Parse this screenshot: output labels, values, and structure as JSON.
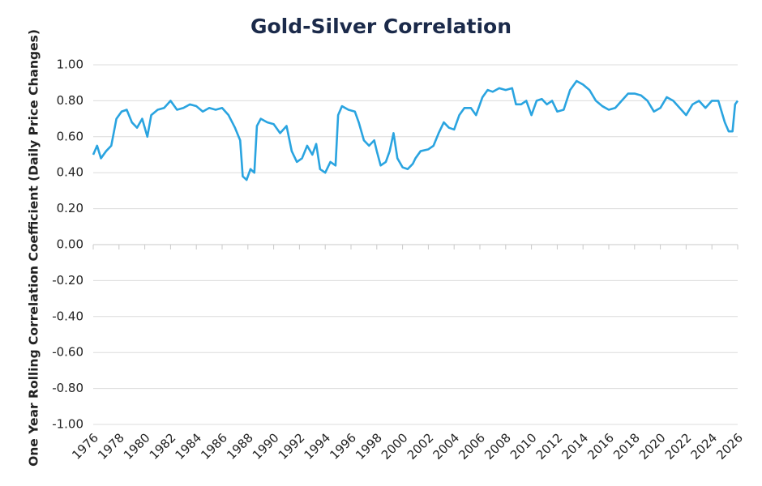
{
  "chart_data": {
    "type": "line",
    "title": "Gold-Silver Correlation",
    "y_label": "One Year Rolling Correlation Coefficient (Daily Price Changes)",
    "xlim": [
      1976,
      2026
    ],
    "xticks": [
      1976,
      1978,
      1980,
      1982,
      1984,
      1986,
      1988,
      1990,
      1992,
      1994,
      1996,
      1998,
      2000,
      2002,
      2004,
      2006,
      2008,
      2010,
      2012,
      2014,
      2016,
      2018,
      2020,
      2022,
      2024,
      2026
    ],
    "ylim": [
      -1,
      1
    ],
    "yticks": [
      {
        "value": -1,
        "label": "-1.00"
      },
      {
        "value": -0.8,
        "label": "-0.80"
      },
      {
        "value": -0.6,
        "label": "-0.60"
      },
      {
        "value": -0.4,
        "label": "-0.40"
      },
      {
        "value": -0.2,
        "label": "-0.20"
      },
      {
        "value": 0,
        "label": "0.00"
      },
      {
        "value": 0.2,
        "label": "0.20"
      },
      {
        "value": 0.4,
        "label": "0.40"
      },
      {
        "value": 0.6,
        "label": "0.60"
      },
      {
        "value": 0.8,
        "label": "0.80"
      },
      {
        "value": 1,
        "label": "1.00"
      }
    ],
    "grid": true,
    "x": [
      1976.0,
      1976.3,
      1976.6,
      1977.0,
      1977.4,
      1977.8,
      1978.2,
      1978.6,
      1979.0,
      1979.4,
      1979.8,
      1980.2,
      1980.5,
      1981.0,
      1981.5,
      1982.0,
      1982.5,
      1983.0,
      1983.5,
      1984.0,
      1984.5,
      1985.0,
      1985.5,
      1986.0,
      1986.5,
      1987.0,
      1987.4,
      1987.6,
      1987.9,
      1988.2,
      1988.5,
      1988.7,
      1989.0,
      1989.5,
      1990.0,
      1990.5,
      1991.0,
      1991.4,
      1991.8,
      1992.2,
      1992.6,
      1993.0,
      1993.3,
      1993.6,
      1994.0,
      1994.4,
      1994.8,
      1995.0,
      1995.3,
      1995.8,
      1996.3,
      1996.6,
      1997.0,
      1997.4,
      1997.8,
      1998.0,
      1998.3,
      1998.7,
      1999.0,
      1999.3,
      1999.6,
      2000.0,
      2000.4,
      2000.8,
      2001.0,
      2001.4,
      2002.0,
      2002.4,
      2002.8,
      2003.2,
      2003.6,
      2004.0,
      2004.4,
      2004.8,
      2005.3,
      2005.7,
      2006.2,
      2006.6,
      2007.0,
      2007.5,
      2008.0,
      2008.5,
      2008.8,
      2009.2,
      2009.6,
      2010.0,
      2010.4,
      2010.8,
      2011.2,
      2011.6,
      2012.0,
      2012.5,
      2013.0,
      2013.5,
      2014.0,
      2014.5,
      2015.0,
      2015.5,
      2016.0,
      2016.5,
      2017.0,
      2017.5,
      2018.0,
      2018.5,
      2019.0,
      2019.5,
      2020.0,
      2020.5,
      2021.0,
      2021.5,
      2022.0,
      2022.5,
      2023.0,
      2023.5,
      2024.0,
      2024.5,
      2025.0,
      2025.3,
      2025.6,
      2025.8,
      2026.0
    ],
    "series": [
      {
        "name": "Gold-Silver Correlation",
        "color": "#2aa4e0",
        "values": [
          0.5,
          0.55,
          0.48,
          0.52,
          0.55,
          0.7,
          0.74,
          0.75,
          0.68,
          0.65,
          0.7,
          0.6,
          0.72,
          0.75,
          0.76,
          0.8,
          0.75,
          0.76,
          0.78,
          0.77,
          0.74,
          0.76,
          0.75,
          0.76,
          0.72,
          0.65,
          0.58,
          0.38,
          0.36,
          0.42,
          0.4,
          0.66,
          0.7,
          0.68,
          0.67,
          0.62,
          0.66,
          0.52,
          0.46,
          0.48,
          0.55,
          0.5,
          0.56,
          0.42,
          0.4,
          0.46,
          0.44,
          0.72,
          0.77,
          0.75,
          0.74,
          0.68,
          0.58,
          0.55,
          0.58,
          0.52,
          0.44,
          0.46,
          0.52,
          0.62,
          0.48,
          0.43,
          0.42,
          0.45,
          0.48,
          0.52,
          0.53,
          0.55,
          0.62,
          0.68,
          0.65,
          0.64,
          0.72,
          0.76,
          0.76,
          0.72,
          0.82,
          0.86,
          0.85,
          0.87,
          0.86,
          0.87,
          0.78,
          0.78,
          0.8,
          0.72,
          0.8,
          0.81,
          0.78,
          0.8,
          0.74,
          0.75,
          0.86,
          0.91,
          0.89,
          0.86,
          0.8,
          0.77,
          0.75,
          0.76,
          0.8,
          0.84,
          0.84,
          0.83,
          0.8,
          0.74,
          0.76,
          0.82,
          0.8,
          0.76,
          0.72,
          0.78,
          0.8,
          0.76,
          0.8,
          0.8,
          0.68,
          0.63,
          0.63,
          0.78,
          0.8
        ]
      }
    ]
  }
}
